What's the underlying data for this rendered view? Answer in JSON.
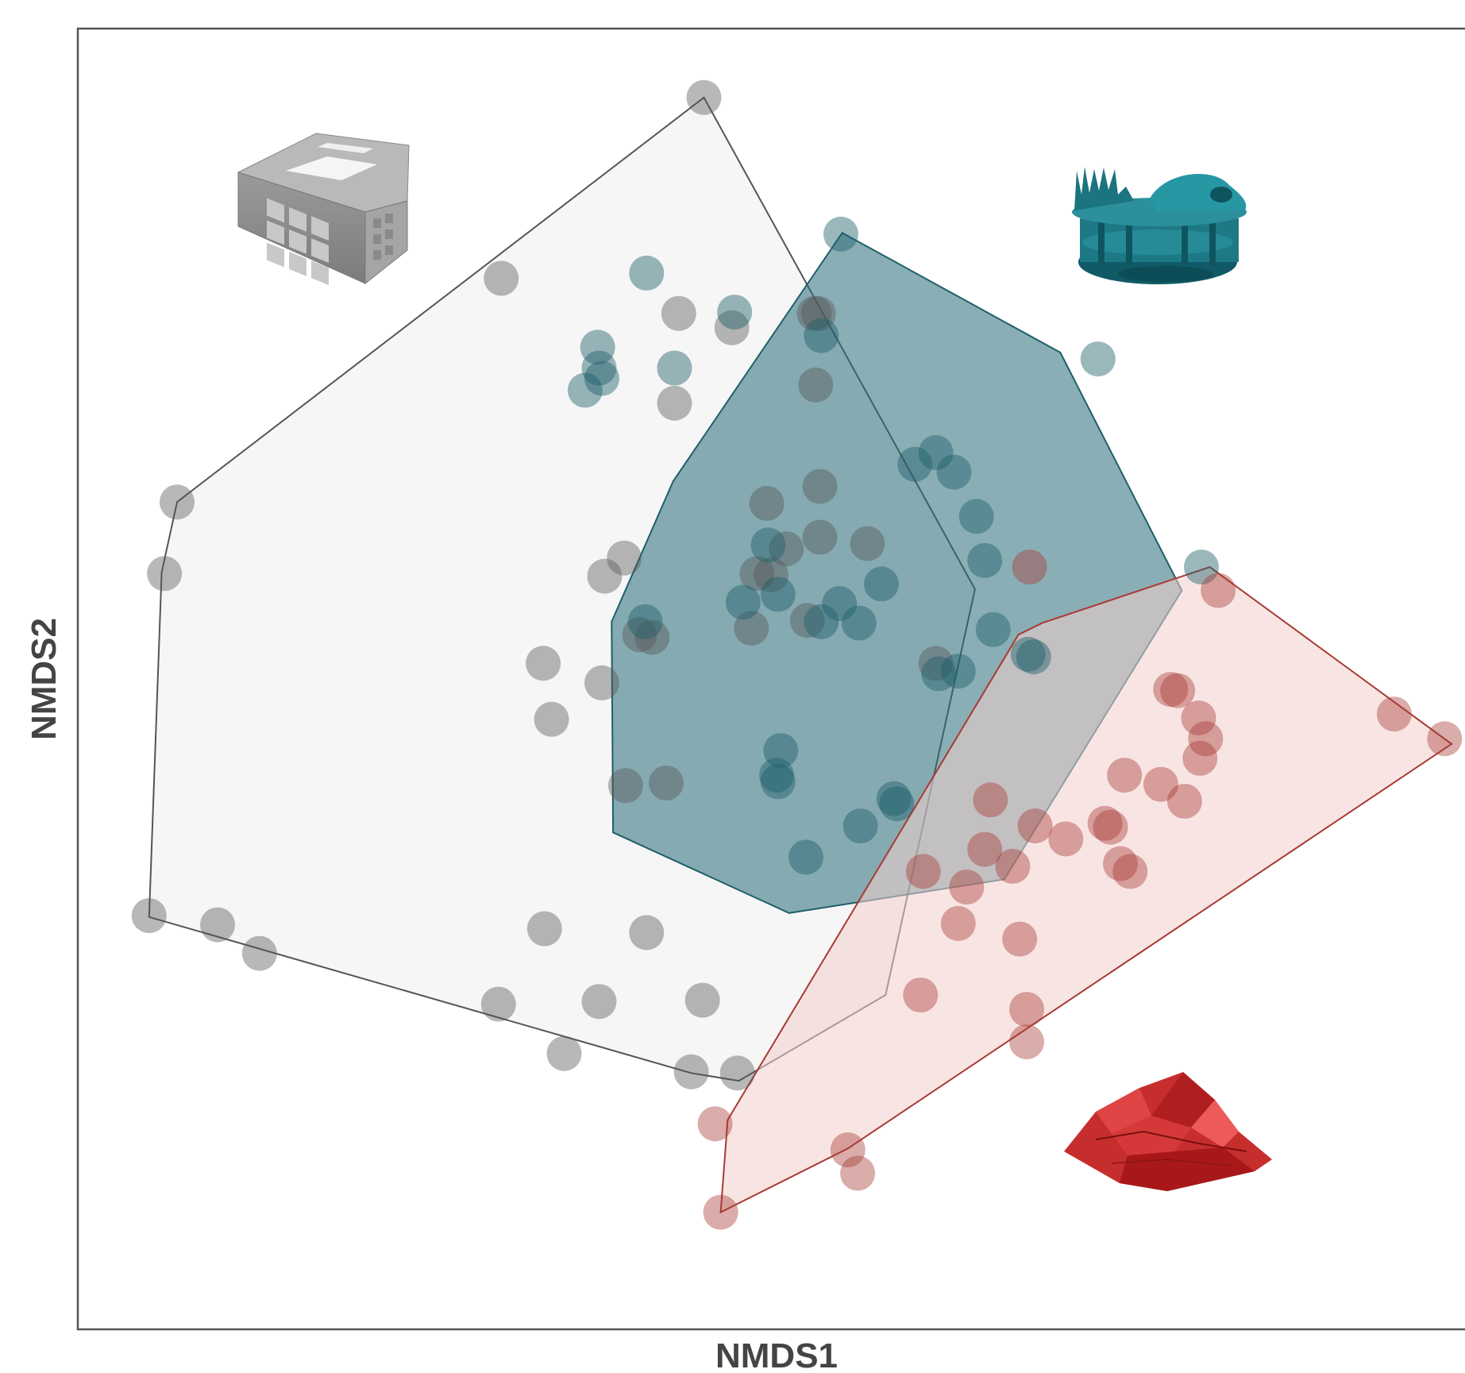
{
  "chart_data": {
    "type": "scatter",
    "xlabel": "NMDS1",
    "ylabel": "NMDS2",
    "grid": false,
    "legend": "none",
    "xlim": [
      0,
      1000
    ],
    "ylim": [
      0,
      1000
    ],
    "series": [
      {
        "color": "#555555",
        "hull_fill": "#f3f3f3",
        "icon": "grid-cube-icon",
        "hull": [
          [
            448,
            947
          ],
          [
            71,
            636
          ],
          [
            60,
            582
          ],
          [
            51,
            317
          ],
          [
            439,
            197
          ],
          [
            473,
            191
          ],
          [
            578,
            257
          ],
          [
            642,
            569
          ]
        ],
        "points": [
          [
            448,
            947
          ],
          [
            71,
            636
          ],
          [
            62,
            581
          ],
          [
            51,
            318
          ],
          [
            100,
            311
          ],
          [
            130,
            289
          ],
          [
            303,
            808
          ],
          [
            430,
            781
          ],
          [
            427,
            712
          ],
          [
            468,
            770
          ],
          [
            522,
            545
          ],
          [
            439,
            198
          ],
          [
            472,
            197
          ],
          [
            348,
            212
          ],
          [
            301,
            250
          ],
          [
            373,
            252
          ],
          [
            447,
            253
          ],
          [
            334,
            308
          ],
          [
            407,
            305
          ],
          [
            339,
            469
          ],
          [
            392,
            418
          ],
          [
            421,
            420
          ],
          [
            333,
            512
          ],
          [
            402,
            534
          ],
          [
            411,
            532
          ],
          [
            493,
            635
          ],
          [
            496,
            580
          ],
          [
            531,
            609
          ],
          [
            531,
            648
          ],
          [
            614,
            512
          ],
          [
            527,
            781
          ],
          [
            528,
            726
          ],
          [
            391,
            593
          ],
          [
            486,
            581
          ],
          [
            482,
            539
          ],
          [
            377,
            579
          ],
          [
            375,
            497
          ],
          [
            530,
            781
          ],
          [
            565,
            604
          ],
          [
            507,
            600
          ]
        ]
      },
      {
        "color": "#1f5f6a",
        "hull_fill": "#2a6b78",
        "icon": "cluster-structure-icon",
        "hull": [
          [
            547,
            843
          ],
          [
            703,
            751
          ],
          [
            790,
            568
          ],
          [
            663,
            346
          ],
          [
            509,
            320
          ],
          [
            383,
            382
          ],
          [
            382,
            544
          ],
          [
            426,
            652
          ]
        ],
        "points": [
          [
            546,
            842
          ],
          [
            407,
            812
          ],
          [
            372,
            755
          ],
          [
            363,
            722
          ],
          [
            373,
            739
          ],
          [
            427,
            739
          ],
          [
            470,
            782
          ],
          [
            532,
            764
          ],
          [
            599,
            665
          ],
          [
            614,
            674
          ],
          [
            627,
            659
          ],
          [
            643,
            625
          ],
          [
            649,
            591
          ],
          [
            684,
            517
          ],
          [
            680,
            519
          ],
          [
            575,
            573
          ],
          [
            730,
            746
          ],
          [
            804,
            586
          ],
          [
            655,
            538
          ],
          [
            616,
            504
          ],
          [
            630,
            506
          ],
          [
            584,
            408
          ],
          [
            586,
            404
          ],
          [
            560,
            387
          ],
          [
            500,
            426
          ],
          [
            501,
            421
          ],
          [
            521,
            363
          ],
          [
            406,
            544
          ],
          [
            375,
            731
          ],
          [
            532,
            544
          ],
          [
            545,
            558
          ],
          [
            559,
            543
          ],
          [
            503,
            445
          ],
          [
            476,
            559
          ],
          [
            501,
            565
          ],
          [
            494,
            603
          ]
        ]
      },
      {
        "color": "#a83a34",
        "hull_fill": "#f2d0cc",
        "icon": "rough-surface-icon",
        "hull": [
          [
            460,
            90
          ],
          [
            551,
            139
          ],
          [
            983,
            450
          ],
          [
            810,
            586
          ],
          [
            690,
            543
          ],
          [
            673,
            534
          ],
          [
            465,
            161
          ]
        ],
        "points": [
          [
            460,
            90
          ],
          [
            551,
            138
          ],
          [
            558,
            120
          ],
          [
            456,
            158
          ],
          [
            603,
            257
          ],
          [
            679,
            221
          ],
          [
            679,
            246
          ],
          [
            674,
            300
          ],
          [
            630,
            312
          ],
          [
            636,
            340
          ],
          [
            605,
            352
          ],
          [
            649,
            369
          ],
          [
            669,
            356
          ],
          [
            739,
            386
          ],
          [
            746,
            358
          ],
          [
            707,
            377
          ],
          [
            735,
            389
          ],
          [
            653,
            407
          ],
          [
            685,
            387
          ],
          [
            749,
            426
          ],
          [
            775,
            419
          ],
          [
            753,
            352
          ],
          [
            803,
            439
          ],
          [
            792,
            406
          ],
          [
            782,
            492
          ],
          [
            802,
            470
          ],
          [
            807,
            454
          ],
          [
            787,
            491
          ],
          [
            942,
            473
          ],
          [
            978,
            454
          ],
          [
            816,
            568
          ],
          [
            681,
            586
          ]
        ]
      }
    ]
  }
}
